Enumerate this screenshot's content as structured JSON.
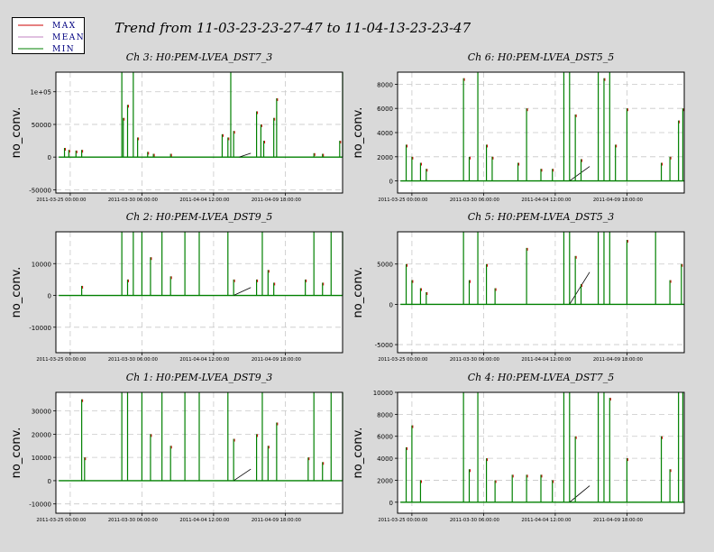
{
  "title": "Trend from 11-03-23-23-27-47 to 11-04-13-23-23-47",
  "legend": [
    {
      "label": "MAX",
      "color": "#cc0000"
    },
    {
      "label": "MEAN",
      "color": "#c080c0"
    },
    {
      "label": "MIN",
      "color": "#008000"
    }
  ],
  "chart_data": [
    {
      "type": "line",
      "title": "Ch 3: H0:PEM-LVEA_DST7_3",
      "ylabel": "no_conv.",
      "ylim": [
        -55000,
        130000
      ],
      "yticks": [
        -50000,
        0,
        50000,
        100000
      ],
      "yticklabels": [
        "-50000",
        "0",
        "50000",
        "1e+05"
      ],
      "xticklabels": [
        "2011-03-25 00:00:00",
        "2011-03-30 06:00:00",
        "2011-04-04 12:00:00",
        "2011-04-09 18:00:00"
      ],
      "baseline": 0,
      "spikes": [
        [
          0.03,
          14000
        ],
        [
          0.045,
          11000
        ],
        [
          0.07,
          10000
        ],
        [
          0.09,
          11000
        ],
        [
          0.23,
          130000
        ],
        [
          0.235,
          60000
        ],
        [
          0.25,
          80000
        ],
        [
          0.27,
          130000
        ],
        [
          0.285,
          30000
        ],
        [
          0.32,
          8000
        ],
        [
          0.34,
          5000
        ],
        [
          0.4,
          5000
        ],
        [
          0.61,
          130000
        ],
        [
          0.62,
          40000
        ],
        [
          0.58,
          35000
        ],
        [
          0.6,
          30000
        ],
        [
          0.7,
          70000
        ],
        [
          0.715,
          50000
        ],
        [
          0.725,
          25000
        ],
        [
          0.76,
          60000
        ],
        [
          0.77,
          90000
        ],
        [
          0.9,
          6000
        ],
        [
          0.93,
          5000
        ],
        [
          0.99,
          25000
        ],
        [
          1.0,
          130000
        ]
      ],
      "bumps": [
        [
          0.64,
          0.68,
          6000
        ]
      ]
    },
    {
      "type": "line",
      "title": "Ch 6: H0:PEM-LVEA_DST5_5",
      "ylabel": "no_conv.",
      "ylim": [
        -1000,
        9000
      ],
      "yticks": [
        0,
        2000,
        4000,
        6000,
        8000
      ],
      "yticklabels": [
        "0",
        "2000",
        "4000",
        "6000",
        "8000"
      ],
      "xticklabels": [
        "2011-03-25 00:00:00",
        "2011-03-30 06:00:00",
        "2011-04-04 12:00:00",
        "2011-04-09 18:00:00"
      ],
      "baseline": 0,
      "spikes": [
        [
          0.03,
          3000
        ],
        [
          0.05,
          2000
        ],
        [
          0.08,
          1500
        ],
        [
          0.1,
          1000
        ],
        [
          0.23,
          8500
        ],
        [
          0.25,
          2000
        ],
        [
          0.28,
          9000
        ],
        [
          0.31,
          3000
        ],
        [
          0.33,
          2000
        ],
        [
          0.42,
          1500
        ],
        [
          0.45,
          6000
        ],
        [
          0.5,
          1000
        ],
        [
          0.54,
          1000
        ],
        [
          0.58,
          9000
        ],
        [
          0.6,
          9000
        ],
        [
          0.62,
          5500
        ],
        [
          0.64,
          1800
        ],
        [
          0.7,
          9000
        ],
        [
          0.72,
          8500
        ],
        [
          0.74,
          9000
        ],
        [
          0.76,
          3000
        ],
        [
          0.8,
          6000
        ],
        [
          0.92,
          1500
        ],
        [
          0.95,
          2000
        ],
        [
          0.98,
          5000
        ],
        [
          0.995,
          6000
        ]
      ],
      "bumps": [
        [
          0.6,
          0.67,
          1200
        ]
      ]
    },
    {
      "type": "line",
      "title": "Ch 2: H0:PEM-LVEA_DST9_5",
      "ylabel": "no_conv.",
      "ylim": [
        -18000,
        20000
      ],
      "yticks": [
        -10000,
        0,
        10000
      ],
      "yticklabels": [
        "-10000",
        "0",
        "10000"
      ],
      "xticklabels": [
        "2011-03-25 00:00:00",
        "2011-03-30 06:00:00",
        "2011-04-04 12:00:00",
        "2011-04-09 18:00:00"
      ],
      "baseline": 0,
      "spikes": [
        [
          0.09,
          3000
        ],
        [
          0.23,
          20000
        ],
        [
          0.25,
          5000
        ],
        [
          0.27,
          20000
        ],
        [
          0.3,
          20000
        ],
        [
          0.33,
          12000
        ],
        [
          0.37,
          20000
        ],
        [
          0.4,
          6000
        ],
        [
          0.45,
          20000
        ],
        [
          0.5,
          20000
        ],
        [
          0.6,
          20000
        ],
        [
          0.62,
          5000
        ],
        [
          0.7,
          5000
        ],
        [
          0.72,
          20000
        ],
        [
          0.74,
          8000
        ],
        [
          0.76,
          4000
        ],
        [
          0.87,
          5000
        ],
        [
          0.9,
          20000
        ],
        [
          0.93,
          4000
        ],
        [
          0.96,
          20000
        ],
        [
          1.0,
          20000
        ]
      ],
      "bumps": [
        [
          0.62,
          0.68,
          2500
        ]
      ]
    },
    {
      "type": "line",
      "title": "Ch 5: H0:PEM-LVEA_DST5_3",
      "ylabel": "no_conv.",
      "ylim": [
        -6000,
        9000
      ],
      "yticks": [
        -5000,
        0,
        5000
      ],
      "yticklabels": [
        "-5000",
        "0",
        "5000"
      ],
      "xticklabels": [
        "2011-03-25 00:00:00",
        "2011-03-30 06:00:00",
        "2011-04-04 12:00:00",
        "2011-04-09 18:00:00"
      ],
      "baseline": 0,
      "spikes": [
        [
          0.03,
          5000
        ],
        [
          0.05,
          3000
        ],
        [
          0.08,
          2000
        ],
        [
          0.1,
          1500
        ],
        [
          0.23,
          9000
        ],
        [
          0.25,
          3000
        ],
        [
          0.28,
          9000
        ],
        [
          0.31,
          5000
        ],
        [
          0.34,
          2000
        ],
        [
          0.45,
          7000
        ],
        [
          0.58,
          9000
        ],
        [
          0.6,
          9000
        ],
        [
          0.62,
          6000
        ],
        [
          0.64,
          2500
        ],
        [
          0.7,
          9000
        ],
        [
          0.72,
          9000
        ],
        [
          0.74,
          9000
        ],
        [
          0.8,
          8000
        ],
        [
          0.9,
          9000
        ],
        [
          0.95,
          3000
        ],
        [
          0.99,
          5000
        ]
      ],
      "bumps": [
        [
          0.6,
          0.67,
          4000
        ]
      ]
    },
    {
      "type": "line",
      "title": "Ch 1: H0:PEM-LVEA_DST9_3",
      "ylabel": "no_conv.",
      "ylim": [
        -14000,
        38000
      ],
      "yticks": [
        -10000,
        0,
        10000,
        20000,
        30000
      ],
      "yticklabels": [
        "-10000",
        "0",
        "10000",
        "20000",
        "30000"
      ],
      "xticklabels": [
        "2011-03-25 00:00:00",
        "2011-03-30 06:00:00",
        "2011-04-04 12:00:00",
        "2011-04-09 18:00:00"
      ],
      "baseline": 0,
      "spikes": [
        [
          0.09,
          35000
        ],
        [
          0.1,
          10000
        ],
        [
          0.23,
          38000
        ],
        [
          0.25,
          38000
        ],
        [
          0.3,
          38000
        ],
        [
          0.33,
          20000
        ],
        [
          0.37,
          38000
        ],
        [
          0.4,
          15000
        ],
        [
          0.45,
          38000
        ],
        [
          0.5,
          38000
        ],
        [
          0.6,
          38000
        ],
        [
          0.62,
          18000
        ],
        [
          0.7,
          20000
        ],
        [
          0.72,
          38000
        ],
        [
          0.74,
          15000
        ],
        [
          0.77,
          25000
        ],
        [
          0.88,
          10000
        ],
        [
          0.9,
          38000
        ],
        [
          0.93,
          8000
        ],
        [
          0.96,
          38000
        ],
        [
          1.0,
          38000
        ]
      ],
      "bumps": [
        [
          0.62,
          0.68,
          5000
        ]
      ]
    },
    {
      "type": "line",
      "title": "Ch 4: H0:PEM-LVEA_DST7_5",
      "ylabel": "no_conv.",
      "ylim": [
        -1000,
        10000
      ],
      "yticks": [
        0,
        2000,
        4000,
        6000,
        8000,
        10000
      ],
      "yticklabels": [
        "0",
        "2000",
        "4000",
        "6000",
        "8000",
        "10000"
      ],
      "xticklabels": [
        "2011-03-25 00:00:00",
        "2011-03-30 06:00:00",
        "2011-04-04 12:00:00",
        "2011-04-09 18:00:00"
      ],
      "baseline": 0,
      "spikes": [
        [
          0.03,
          5000
        ],
        [
          0.05,
          7000
        ],
        [
          0.08,
          2000
        ],
        [
          0.23,
          10000
        ],
        [
          0.25,
          3000
        ],
        [
          0.28,
          10000
        ],
        [
          0.31,
          4000
        ],
        [
          0.34,
          2000
        ],
        [
          0.4,
          2500
        ],
        [
          0.45,
          2500
        ],
        [
          0.5,
          2500
        ],
        [
          0.54,
          2000
        ],
        [
          0.58,
          10000
        ],
        [
          0.6,
          10000
        ],
        [
          0.62,
          6000
        ],
        [
          0.7,
          10000
        ],
        [
          0.72,
          10000
        ],
        [
          0.74,
          9500
        ],
        [
          0.8,
          4000
        ],
        [
          0.92,
          6000
        ],
        [
          0.95,
          3000
        ],
        [
          0.98,
          10000
        ],
        [
          0.995,
          10000
        ]
      ],
      "bumps": [
        [
          0.6,
          0.67,
          1500
        ]
      ]
    }
  ]
}
